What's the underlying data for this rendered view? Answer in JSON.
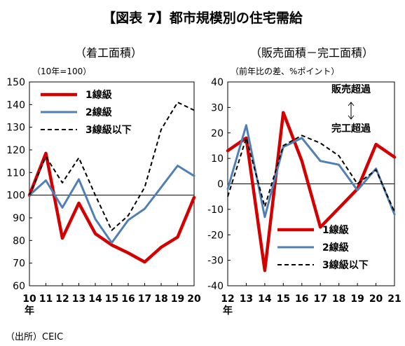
{
  "title": "【図表 7】都市規模別の住宅需給",
  "source": "（出所）CEIC",
  "chart_data": [
    {
      "type": "line",
      "title": "（着工面積）",
      "subtitle": "（10年=100）",
      "x": [
        "10",
        "11",
        "12",
        "13",
        "14",
        "15",
        "16",
        "17",
        "18",
        "19",
        "20"
      ],
      "x_unit_label": "年",
      "ylim": [
        60,
        150
      ],
      "yticks": [
        60,
        70,
        80,
        90,
        100,
        110,
        120,
        130,
        140,
        150
      ],
      "ref_line": 100,
      "legend_position": "top-left",
      "series": [
        {
          "name": "1線級",
          "color": "#d40000",
          "style": "solid",
          "width": 4.5,
          "values": [
            100,
            118.5,
            81,
            96.5,
            83,
            78,
            74.5,
            70.5,
            77,
            81.5,
            99
          ]
        },
        {
          "name": "2線級",
          "color": "#4f7fb5",
          "style": "solid",
          "width": 3,
          "values": [
            100,
            106.5,
            94.5,
            107,
            89.5,
            79,
            89,
            94,
            103.5,
            113,
            108.5
          ]
        },
        {
          "name": "3線級以下",
          "color": "#000000",
          "style": "dashed",
          "width": 2,
          "values": [
            100,
            117,
            105.5,
            116.5,
            100,
            84.5,
            91,
            103.5,
            129,
            141,
            137.5
          ]
        }
      ]
    },
    {
      "type": "line",
      "title": "（販売面積－完工面積）",
      "subtitle": "（前年比の差、%ポイント）",
      "x": [
        "12",
        "13",
        "14",
        "15",
        "16",
        "17",
        "18",
        "19",
        "20",
        "21"
      ],
      "x_unit_label": "年",
      "ylim": [
        -40,
        40
      ],
      "yticks": [
        -40,
        -30,
        -20,
        -10,
        0,
        10,
        20,
        30,
        40
      ],
      "ref_line": 0,
      "legend_position": "bottom-right",
      "annotations": {
        "top": "販売超過",
        "arrow": "↑↓",
        "bottom": "完工超過"
      },
      "series": [
        {
          "name": "1線級",
          "color": "#d40000",
          "style": "solid",
          "width": 4.5,
          "values": [
            13,
            18,
            -34,
            28,
            9,
            -17,
            -9.5,
            -2,
            15.5,
            10.5
          ]
        },
        {
          "name": "2線級",
          "color": "#4f7fb5",
          "style": "solid",
          "width": 3,
          "values": [
            -2,
            23,
            -13,
            14.5,
            18,
            9,
            7.5,
            -2.5,
            6,
            -12
          ]
        },
        {
          "name": "3線級以下",
          "color": "#000000",
          "style": "dashed",
          "width": 2,
          "values": [
            -5,
            18,
            -9,
            15,
            19,
            16,
            11,
            0,
            5.5,
            -11
          ]
        }
      ]
    }
  ]
}
